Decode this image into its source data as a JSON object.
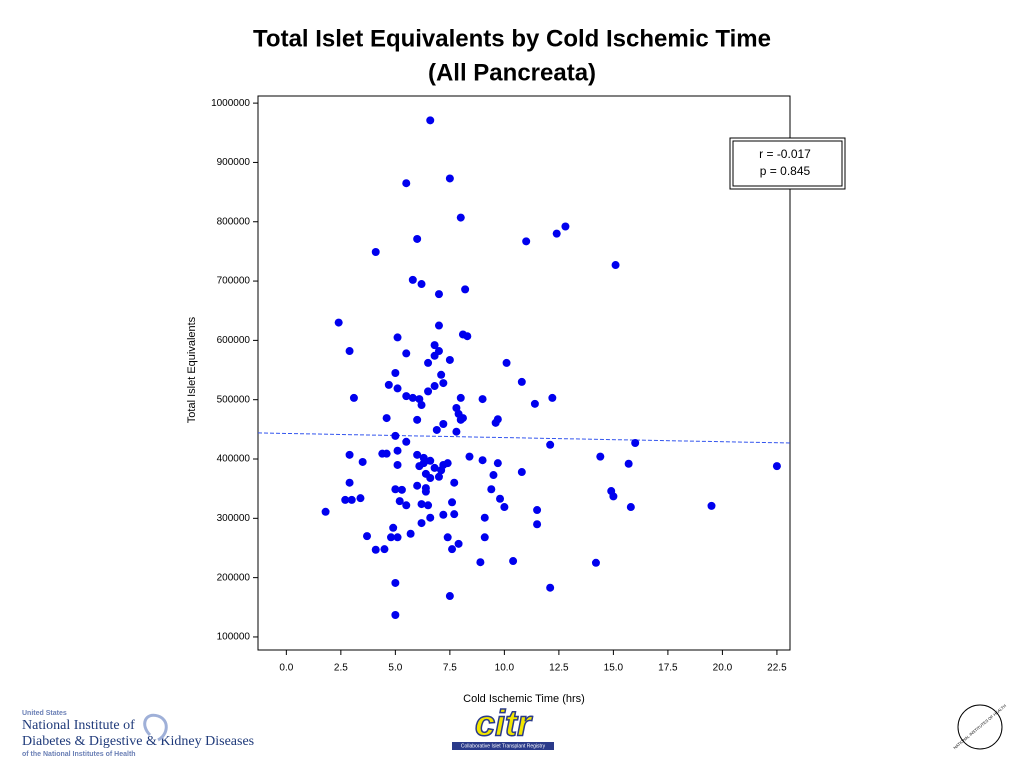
{
  "chart_data": {
    "type": "scatter",
    "title": [
      "Total Islet Equivalents by Cold Ischemic Time",
      "(All Pancreata)"
    ],
    "x_label": "Cold Ischemic Time (hrs)",
    "y_label": "Total Islet Equivalents",
    "annotation": [
      "r = -0.017",
      "p = 0.845"
    ],
    "color": "#0000ee",
    "xlim": [
      -1.3,
      23.1
    ],
    "ylim": [
      78000,
      1012000
    ],
    "xticks": [
      {
        "value": 0,
        "label": "0.0"
      },
      2.5,
      {
        "value": 5,
        "label": "5.0"
      },
      7.5,
      {
        "value": 10,
        "label": "10.0"
      },
      12.5,
      {
        "value": 15,
        "label": "15.0"
      },
      17.5,
      {
        "value": 20,
        "label": "20.0"
      },
      22.5
    ],
    "yticks": [
      100000,
      200000,
      300000,
      400000,
      500000,
      600000,
      700000,
      800000,
      900000,
      1000000
    ],
    "x": [
      6.6,
      7.5,
      5.5,
      8.0,
      6.0,
      11.0,
      12.4,
      12.8,
      4.1,
      15.1,
      5.8,
      6.2,
      8.2,
      7.0,
      2.4,
      7.0,
      8.1,
      8.3,
      5.1,
      2.9,
      6.8,
      7.0,
      5.5,
      6.8,
      7.5,
      10.1,
      6.5,
      7.1,
      5.0,
      7.2,
      4.7,
      6.8,
      10.8,
      5.1,
      6.5,
      3.1,
      5.5,
      5.8,
      6.1,
      8.0,
      9.0,
      12.2,
      11.4,
      6.2,
      7.8,
      7.9,
      8.1,
      4.6,
      6.0,
      8.0,
      9.7,
      9.6,
      7.2,
      6.9,
      7.8,
      5.0,
      5.5,
      12.1,
      16.0,
      4.4,
      4.6,
      5.1,
      2.9,
      14.4,
      6.0,
      6.3,
      8.4,
      9.0,
      9.7,
      3.5,
      5.1,
      6.1,
      6.3,
      6.6,
      6.8,
      7.2,
      7.4,
      7.1,
      15.7,
      22.5,
      10.8,
      9.5,
      6.4,
      7.0,
      6.6,
      2.9,
      7.7,
      6.0,
      6.4,
      5.0,
      5.3,
      9.4,
      14.9,
      15.0,
      6.4,
      3.4,
      2.7,
      3.0,
      9.8,
      5.2,
      7.6,
      6.2,
      6.5,
      5.5,
      10.0,
      15.8,
      11.5,
      19.5,
      1.8,
      7.7,
      7.2,
      6.6,
      9.1,
      6.2,
      11.5,
      4.9,
      5.7,
      9.1,
      3.7,
      4.8,
      5.1,
      7.4,
      7.9,
      7.6,
      4.1,
      4.5,
      10.4,
      14.2,
      8.9,
      5.0,
      12.1,
      7.5,
      5.0
    ],
    "values": [
      971000,
      873000,
      865000,
      807000,
      771000,
      767000,
      780000,
      792000,
      749000,
      727000,
      702000,
      695000,
      686000,
      678000,
      630000,
      625000,
      610000,
      607000,
      605000,
      582000,
      592000,
      582000,
      578000,
      574000,
      567000,
      562000,
      562000,
      542000,
      545000,
      528000,
      525000,
      523000,
      530000,
      519000,
      514000,
      503000,
      506000,
      503000,
      501000,
      503000,
      501000,
      503000,
      493000,
      491000,
      486000,
      476000,
      469000,
      469000,
      466000,
      466000,
      467000,
      461000,
      459000,
      449000,
      446000,
      439000,
      429000,
      424000,
      427000,
      409000,
      409000,
      414000,
      407000,
      404000,
      407000,
      402000,
      404000,
      398000,
      393000,
      395000,
      390000,
      388000,
      393000,
      397000,
      385000,
      390000,
      393000,
      381000,
      392000,
      388000,
      378000,
      373000,
      375000,
      370000,
      368000,
      360000,
      360000,
      355000,
      351000,
      349000,
      348000,
      349000,
      346000,
      337000,
      345000,
      334000,
      331000,
      331000,
      333000,
      329000,
      327000,
      324000,
      322000,
      322000,
      319000,
      319000,
      314000,
      321000,
      311000,
      307000,
      306000,
      301000,
      301000,
      292000,
      290000,
      284000,
      274000,
      268000,
      270000,
      268000,
      268000,
      268000,
      257000,
      248000,
      247000,
      248000,
      228000,
      225000,
      226000,
      191000,
      183000,
      169000,
      137000
    ],
    "trend_line": {
      "color": "#3355ee",
      "x": [
        -1.3,
        23.1
      ],
      "values": [
        444000,
        427000
      ]
    }
  },
  "logos": {
    "niddk": [
      "United States",
      "National Institute of",
      "Diabetes & Digestive & Kidney Diseases",
      "of the National Institutes of Health"
    ],
    "citr": [
      "citr",
      "Collaborative Islet Transplant Registry"
    ],
    "nih": "NATIONAL INSTITUTES OF HEALTH"
  }
}
